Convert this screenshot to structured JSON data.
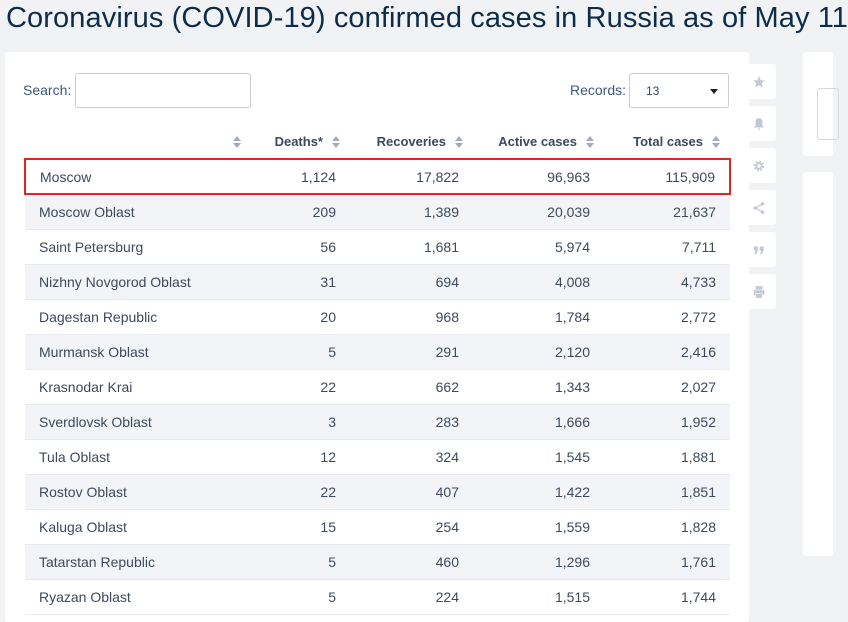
{
  "title": "Coronavirus (COVID-19) confirmed cases in Russia as of May 11",
  "search": {
    "label": "Search:",
    "value": ""
  },
  "records": {
    "label": "Records:",
    "value": "13"
  },
  "columns": [
    "",
    "Deaths*",
    "Recoveries",
    "Active cases",
    "Total cases"
  ],
  "rows": [
    {
      "name": "Moscow",
      "deaths": "1,124",
      "recoveries": "17,822",
      "active": "96,963",
      "total": "115,909"
    },
    {
      "name": "Moscow Oblast",
      "deaths": "209",
      "recoveries": "1,389",
      "active": "20,039",
      "total": "21,637"
    },
    {
      "name": "Saint Petersburg",
      "deaths": "56",
      "recoveries": "1,681",
      "active": "5,974",
      "total": "7,711"
    },
    {
      "name": "Nizhny Novgorod Oblast",
      "deaths": "31",
      "recoveries": "694",
      "active": "4,008",
      "total": "4,733"
    },
    {
      "name": "Dagestan Republic",
      "deaths": "20",
      "recoveries": "968",
      "active": "1,784",
      "total": "2,772"
    },
    {
      "name": "Murmansk Oblast",
      "deaths": "5",
      "recoveries": "291",
      "active": "2,120",
      "total": "2,416"
    },
    {
      "name": "Krasnodar Krai",
      "deaths": "22",
      "recoveries": "662",
      "active": "1,343",
      "total": "2,027"
    },
    {
      "name": "Sverdlovsk Oblast",
      "deaths": "3",
      "recoveries": "283",
      "active": "1,666",
      "total": "1,952"
    },
    {
      "name": "Tula Oblast",
      "deaths": "12",
      "recoveries": "324",
      "active": "1,545",
      "total": "1,881"
    },
    {
      "name": "Rostov Oblast",
      "deaths": "22",
      "recoveries": "407",
      "active": "1,422",
      "total": "1,851"
    },
    {
      "name": "Kaluga Oblast",
      "deaths": "15",
      "recoveries": "254",
      "active": "1,559",
      "total": "1,828"
    },
    {
      "name": "Tatarstan Republic",
      "deaths": "5",
      "recoveries": "460",
      "active": "1,296",
      "total": "1,761"
    },
    {
      "name": "Ryazan Oblast",
      "deaths": "5",
      "recoveries": "224",
      "active": "1,515",
      "total": "1,744"
    }
  ],
  "highlight_color": "#e02424",
  "side_tools": [
    "star-icon",
    "bell-icon",
    "gear-icon",
    "share-icon",
    "quote-icon",
    "print-icon"
  ]
}
